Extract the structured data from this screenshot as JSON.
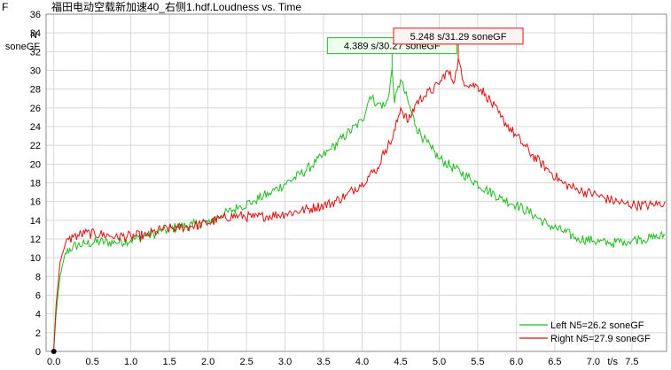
{
  "chart_data": {
    "type": "line",
    "title": "福田电动空载新加速40_右侧1.hdf.Loudness vs. Time",
    "corner_mark": "F",
    "ylabel_line1": "N",
    "ylabel_line2": "soneGF",
    "xlabel": "t/s",
    "xlim": [
      -0.1,
      7.95
    ],
    "ylim": [
      0,
      36
    ],
    "yticks": [
      "0",
      "2",
      "4",
      "6",
      "8",
      "10",
      "12",
      "14",
      "16",
      "18",
      "20",
      "22",
      "24",
      "26",
      "28",
      "30",
      "32",
      "34",
      "36"
    ],
    "xticks": [
      "0.0",
      "0.5",
      "1.0",
      "1.5",
      "2.0",
      "2.5",
      "3.0",
      "3.5",
      "4.0",
      "4.5",
      "5.0",
      "5.5",
      "6.0",
      "6.5",
      "7.0",
      "7.5"
    ],
    "grid": true,
    "legend_position": "bottom-right",
    "series": [
      {
        "name": "Left N5=26.2 soneGF",
        "color": "#22bb22",
        "x": [
          0.0,
          0.03,
          0.08,
          0.15,
          0.25,
          0.4,
          0.6,
          0.8,
          1.0,
          1.2,
          1.4,
          1.6,
          1.8,
          2.0,
          2.2,
          2.4,
          2.6,
          2.8,
          3.0,
          3.2,
          3.4,
          3.6,
          3.8,
          4.0,
          4.1,
          4.2,
          4.3,
          4.35,
          4.389,
          4.42,
          4.5,
          4.6,
          4.7,
          4.8,
          4.9,
          5.0,
          5.2,
          5.4,
          5.6,
          5.8,
          6.0,
          6.2,
          6.4,
          6.6,
          6.8,
          7.0,
          7.2,
          7.4,
          7.6,
          7.8,
          7.93
        ],
        "y": [
          0.3,
          4,
          8,
          10.5,
          11.2,
          11.5,
          11.7,
          11.6,
          11.9,
          12.3,
          12.8,
          13.3,
          13.5,
          13.8,
          14.6,
          15.4,
          16.1,
          16.9,
          17.9,
          18.9,
          20.2,
          21.6,
          23.2,
          24.6,
          27.2,
          26.5,
          26.2,
          27.5,
          30.27,
          26.5,
          29.0,
          26.5,
          24.0,
          22.7,
          21.6,
          20.6,
          19.5,
          18.5,
          17.3,
          16.4,
          15.6,
          14.7,
          13.6,
          12.8,
          12.1,
          11.8,
          11.5,
          11.8,
          12.0,
          12.1,
          12.4
        ]
      },
      {
        "name": "Right N5=27.9 soneGF",
        "color": "#dd1111",
        "x": [
          0.0,
          0.03,
          0.08,
          0.15,
          0.25,
          0.4,
          0.6,
          0.8,
          1.0,
          1.2,
          1.4,
          1.6,
          1.8,
          2.0,
          2.2,
          2.4,
          2.6,
          2.8,
          3.0,
          3.2,
          3.4,
          3.6,
          3.8,
          4.0,
          4.2,
          4.3,
          4.4,
          4.5,
          4.6,
          4.7,
          4.8,
          5.0,
          5.1,
          5.2,
          5.248,
          5.3,
          5.4,
          5.5,
          5.6,
          5.8,
          6.0,
          6.2,
          6.4,
          6.6,
          6.8,
          7.0,
          7.2,
          7.4,
          7.6,
          7.8,
          7.93
        ],
        "y": [
          0.3,
          5,
          9.5,
          11.5,
          12.2,
          12.6,
          12.5,
          12.3,
          12.3,
          12.4,
          13.0,
          13.2,
          13.4,
          13.7,
          14.3,
          14.5,
          14.3,
          14.5,
          14.7,
          15.0,
          15.4,
          15.8,
          16.7,
          18.0,
          19.6,
          21.5,
          22.8,
          26.0,
          24.5,
          26.5,
          27.2,
          28.5,
          30.0,
          28.8,
          31.29,
          29.0,
          28.5,
          28.3,
          27.5,
          25.0,
          23.0,
          21.0,
          19.5,
          18.0,
          17.2,
          16.8,
          16.2,
          15.8,
          15.6,
          15.6,
          16.0
        ]
      }
    ],
    "annotations": [
      {
        "text": "4.389 s/30.27 soneGF",
        "x": 4.389,
        "y": 30.27,
        "color": "#22bb22",
        "fill": "#eeffee"
      },
      {
        "text": "5.248 s/31.29 soneGF",
        "x": 5.248,
        "y": 31.29,
        "color": "#dd1111",
        "fill": "#fff2f2"
      }
    ]
  }
}
